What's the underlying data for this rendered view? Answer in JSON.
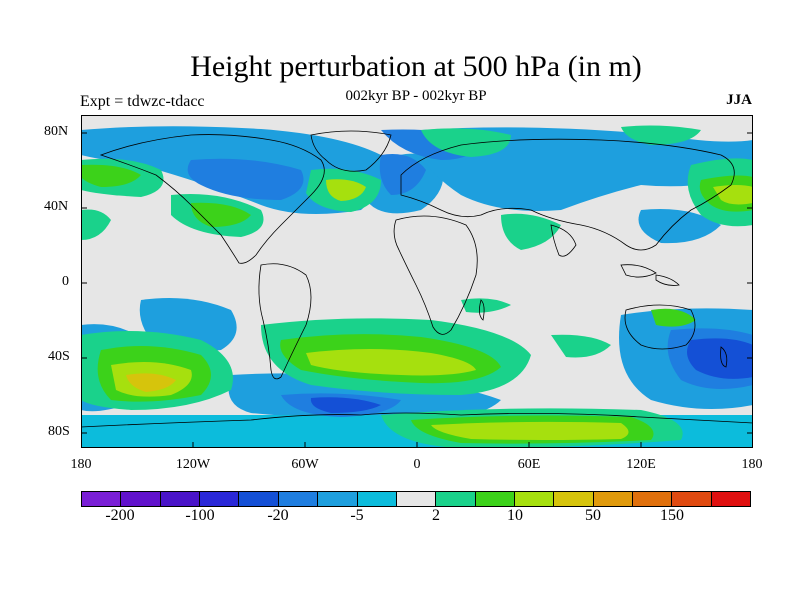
{
  "title": "Height perturbation at 500 hPa (in m)",
  "subtitle": "002kyr BP - 002kyr BP",
  "experiment": "Expt = tdwzc-tdacc",
  "season": "JJA",
  "lat_labels": [
    "80N",
    "40N",
    "0",
    "40S",
    "80S"
  ],
  "lon_labels": [
    "180",
    "120W",
    "60W",
    "0",
    "60E",
    "120E",
    "180"
  ],
  "colorbar": {
    "colors": [
      "#7a1fd6",
      "#6112cc",
      "#4a14c9",
      "#2a28d8",
      "#1450d6",
      "#1f7ee0",
      "#1e9fde",
      "#0cbcdc",
      "#e6e6e6",
      "#1ad28b",
      "#3cd21a",
      "#a6e00e",
      "#d6c40c",
      "#e09a0c",
      "#e0700c",
      "#e04a10",
      "#e01010"
    ],
    "labels": [
      "-200",
      "-100",
      "-20",
      "-5",
      "2",
      "10",
      "50",
      "150"
    ]
  }
}
